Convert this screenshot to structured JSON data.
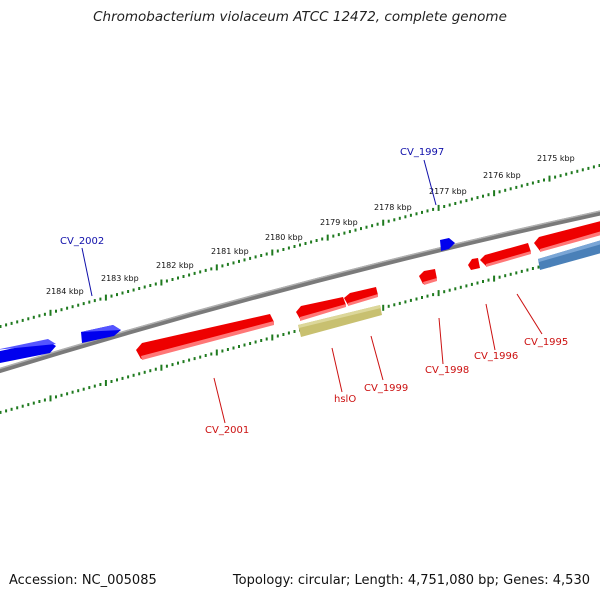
{
  "title": "Chromobacterium violaceum ATCC 12472, complete genome",
  "footer": {
    "accession": "Accession: NC_005085",
    "topology": "Topology: circular; Length: 4,751,080 bp; Genes: 4,530"
  },
  "colors": {
    "backbone": "#888888",
    "tick": "#1f7a1f",
    "forward_gene": "#0000ee",
    "reverse_gene": "#ee0000",
    "pseudo_gene": "#c8c070",
    "blue_reverse_gene": "#4a80b8",
    "forward_label": "#1010aa",
    "reverse_label": "#cc1111"
  },
  "scale_labels": [
    "2175 kbp",
    "2176 kbp",
    "2177 kbp",
    "2178 kbp",
    "2179 kbp",
    "2180 kbp",
    "2181 kbp",
    "2182 kbp",
    "2183 kbp",
    "2184 kbp"
  ],
  "gene_labels": {
    "cv1997": "CV_1997",
    "cv2002": "CV_2002",
    "cv2001": "CV_2001",
    "hslo": "hslO",
    "cv1999": "CV_1999",
    "cv1998": "CV_1998",
    "cv1996": "CV_1996",
    "cv1995": "CV_1995"
  }
}
